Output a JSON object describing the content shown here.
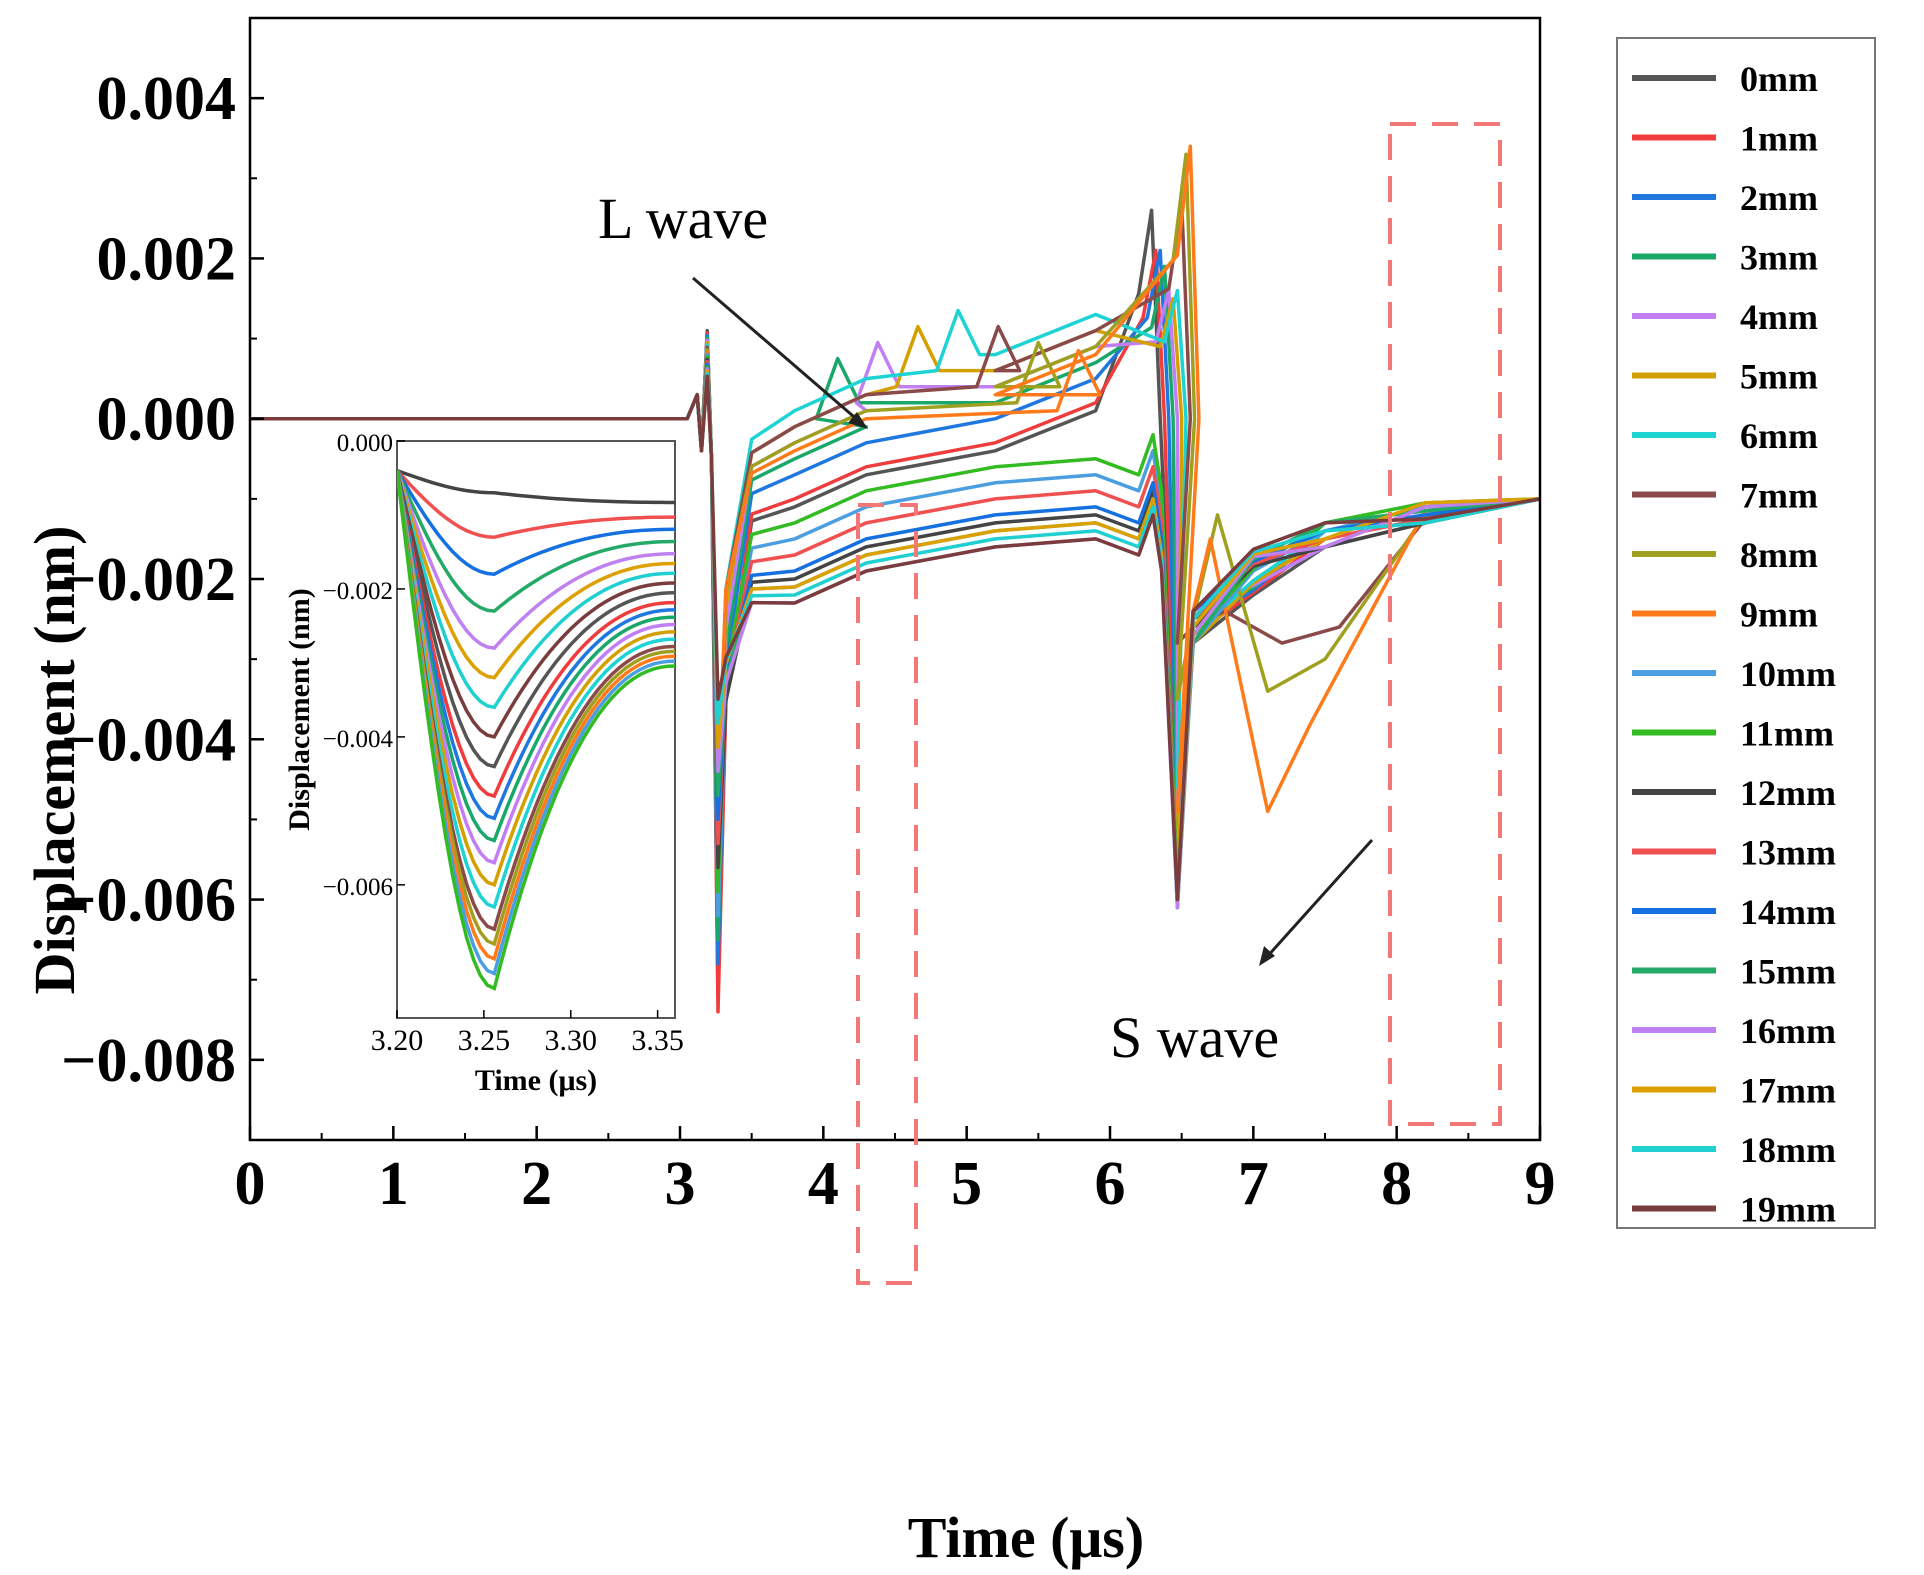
{
  "chart_data": [
    {
      "type": "line",
      "xlabel": "Time (μs)",
      "ylabel": "Displacement (nm)",
      "xlim": [
        0,
        9
      ],
      "ylim": [
        -0.009,
        0.005
      ],
      "xticks": [
        "0",
        "1",
        "2",
        "3",
        "4",
        "5",
        "6",
        "7",
        "8",
        "9"
      ],
      "yticks": [
        "0.004",
        "0.002",
        "0.000",
        "−0.002",
        "−0.004",
        "−0.006",
        "−0.008"
      ],
      "legend_position": "right",
      "annotations": [
        "L wave",
        "S wave"
      ],
      "series": [
        {
          "name": "0mm",
          "color": "#555555",
          "plateau": -0.0003,
          "trough": -0.0072,
          "spike": 0.0026,
          "s_min": -0.0048
        },
        {
          "name": "1mm",
          "color": "#f03c3c",
          "plateau": -0.0002,
          "trough": -0.0074,
          "spike": 0.0021,
          "s_min": -0.0052
        },
        {
          "name": "2mm",
          "color": "#1f77e0",
          "plateau": 0.0001,
          "trough": -0.0068,
          "spike": 0.0021,
          "s_min": -0.0055
        },
        {
          "name": "3mm",
          "color": "#1aa86a",
          "plateau": 0.0003,
          "trough": -0.0065,
          "spike": 0.0019,
          "s_min": -0.0057
        },
        {
          "name": "4mm",
          "color": "#c27ff5",
          "plateau": 0.0005,
          "trough": -0.0062,
          "spike": 0.0016,
          "s_min": -0.0058
        },
        {
          "name": "5mm",
          "color": "#d4a000",
          "plateau": 0.0007,
          "trough": -0.0058,
          "spike": 0.0015,
          "s_min": -0.0057
        },
        {
          "name": "6mm",
          "color": "#1ed3d3",
          "plateau": 0.0009,
          "trough": -0.0055,
          "spike": 0.0016,
          "s_min": -0.0046
        },
        {
          "name": "7mm",
          "color": "#8b4a4a",
          "plateau": 0.0007,
          "trough": -0.0052,
          "spike": 0.0027,
          "s_min": -0.0028
        },
        {
          "name": "8mm",
          "color": "#a0a020",
          "plateau": 0.0005,
          "trough": -0.0049,
          "spike": 0.0033,
          "s_min": -0.0035
        },
        {
          "name": "9mm",
          "color": "#ff7a1a",
          "plateau": 0.0004,
          "trough": -0.0046,
          "spike": 0.0034,
          "s_min": -0.0049
        },
        {
          "name": "10mm",
          "color": "#4b9fe0",
          "plateau": -0.0007,
          "trough": -0.0062,
          "spike": 0.0,
          "s_min": -0.0059
        },
        {
          "name": "11mm",
          "color": "#33bb22",
          "plateau": -0.0005,
          "trough": -0.0059,
          "spike": 0.0,
          "s_min": -0.0059
        },
        {
          "name": "12mm",
          "color": "#444444",
          "plateau": -0.0012,
          "trough": -0.0056,
          "spike": 0.0,
          "s_min": -0.006
        },
        {
          "name": "13mm",
          "color": "#f05050",
          "plateau": -0.0009,
          "trough": -0.0053,
          "spike": 0.0,
          "s_min": -0.006
        },
        {
          "name": "14mm",
          "color": "#1570e0",
          "plateau": -0.0011,
          "trough": -0.005,
          "spike": 0.0,
          "s_min": -0.0061
        },
        {
          "name": "15mm",
          "color": "#22aa66",
          "plateau": -0.0013,
          "trough": -0.0047,
          "spike": 0.0,
          "s_min": -0.0061
        },
        {
          "name": "16mm",
          "color": "#bf80f0",
          "plateau": -0.0015,
          "trough": -0.0044,
          "spike": 0.0,
          "s_min": -0.0061
        },
        {
          "name": "17mm",
          "color": "#dca000",
          "plateau": -0.0013,
          "trough": -0.0041,
          "spike": 0.0,
          "s_min": -0.006
        },
        {
          "name": "18mm",
          "color": "#20d0d0",
          "plateau": -0.0014,
          "trough": -0.0038,
          "spike": 0.0,
          "s_min": -0.006
        },
        {
          "name": "19mm",
          "color": "#7a3c3c",
          "plateau": -0.0015,
          "trough": -0.0035,
          "spike": 0.0,
          "s_min": -0.006
        }
      ]
    },
    {
      "type": "line",
      "role": "inset",
      "xlabel": "Time (μs)",
      "ylabel": "Displacement (nm)",
      "xlim": [
        3.2,
        3.36
      ],
      "ylim": [
        -0.0078,
        0.0
      ],
      "xticks": [
        "3.20",
        "3.25",
        "3.30",
        "3.35"
      ],
      "yticks": [
        "0.000",
        "−0.002",
        "−0.004",
        "−0.006"
      ],
      "minima_time": 3.256,
      "minima": [
        -0.0007,
        -0.0013,
        -0.0018,
        -0.0023,
        -0.0028,
        -0.0032,
        -0.0036,
        -0.004,
        -0.0044,
        -0.0048,
        -0.0051,
        -0.0054,
        -0.0057,
        -0.006,
        -0.0063,
        -0.0066,
        -0.0068,
        -0.007,
        -0.0072,
        -0.0074
      ]
    }
  ]
}
